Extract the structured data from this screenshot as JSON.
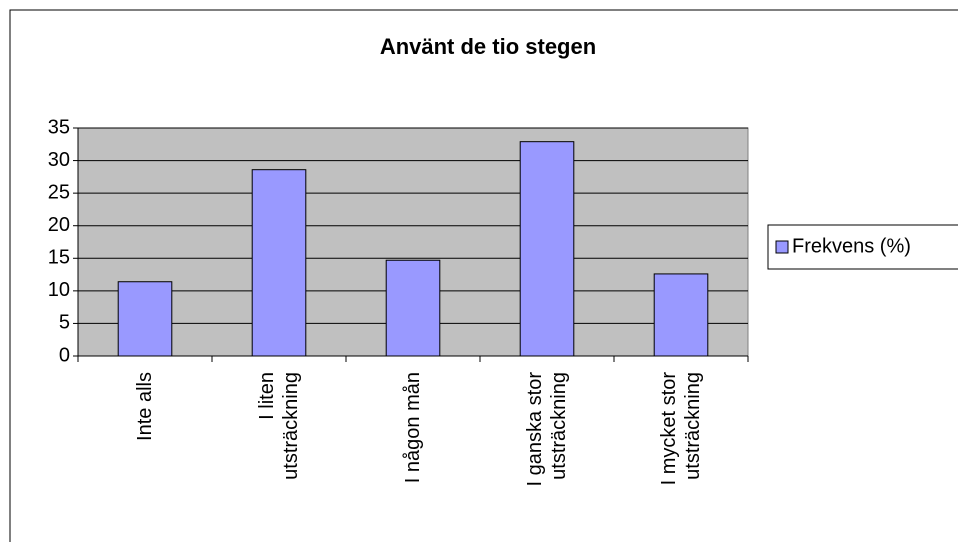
{
  "chart_data": {
    "type": "bar",
    "title": "Använt de tio stegen",
    "categories": [
      "Inte alls",
      "I liten utsträckning",
      "I någon mån",
      "I ganska stor utsträckning",
      "I mycket stor utsträckning"
    ],
    "series": [
      {
        "name": "Frekvens (%)",
        "color": "#9999ff",
        "values": [
          11.4,
          28.6,
          14.7,
          32.9,
          12.6
        ]
      }
    ],
    "ylim": [
      0,
      35
    ],
    "yticks": [
      0,
      5,
      10,
      15,
      20,
      25,
      30,
      35
    ],
    "grid": true,
    "legend": "right"
  }
}
